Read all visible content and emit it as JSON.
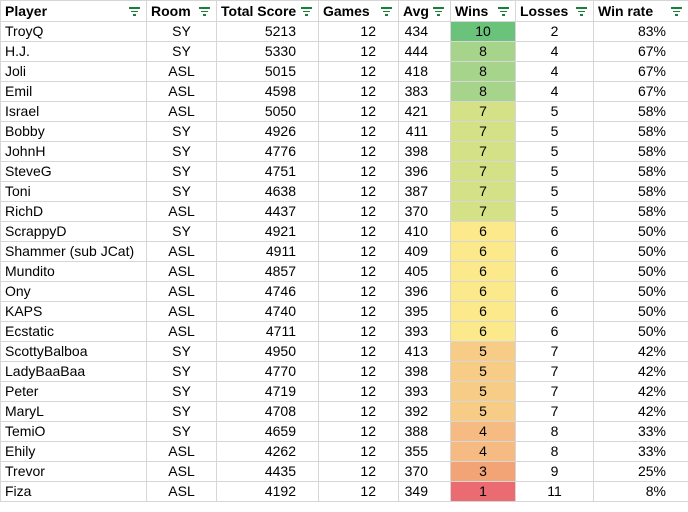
{
  "columns": [
    {
      "label": "Player"
    },
    {
      "label": "Room"
    },
    {
      "label": "Total Score"
    },
    {
      "label": "Games"
    },
    {
      "label": "Avg"
    },
    {
      "label": "Wins"
    },
    {
      "label": "Losses"
    },
    {
      "label": "Win rate"
    }
  ],
  "icons": {
    "filter": "filter-icon"
  },
  "win_colors": {
    "10": "#6ac27b",
    "8": "#a6d48a",
    "7": "#d5e187",
    "6": "#fce98c",
    "5": "#f7cc86",
    "4": "#f6bb83",
    "3": "#f2a477",
    "1": "#ea6b72"
  },
  "rows": [
    {
      "player": "TroyQ",
      "room": "SY",
      "total": "5213",
      "games": "12",
      "avg": "434",
      "wins": "10",
      "losses": "2",
      "rate": "83%"
    },
    {
      "player": "H.J.",
      "room": "SY",
      "total": "5330",
      "games": "12",
      "avg": "444",
      "wins": "8",
      "losses": "4",
      "rate": "67%"
    },
    {
      "player": "Joli",
      "room": "ASL",
      "total": "5015",
      "games": "12",
      "avg": "418",
      "wins": "8",
      "losses": "4",
      "rate": "67%"
    },
    {
      "player": "Emil",
      "room": "ASL",
      "total": "4598",
      "games": "12",
      "avg": "383",
      "wins": "8",
      "losses": "4",
      "rate": "67%"
    },
    {
      "player": "Israel",
      "room": "ASL",
      "total": "5050",
      "games": "12",
      "avg": "421",
      "wins": "7",
      "losses": "5",
      "rate": "58%"
    },
    {
      "player": "Bobby",
      "room": "SY",
      "total": "4926",
      "games": "12",
      "avg": "411",
      "wins": "7",
      "losses": "5",
      "rate": "58%"
    },
    {
      "player": "JohnH",
      "room": "SY",
      "total": "4776",
      "games": "12",
      "avg": "398",
      "wins": "7",
      "losses": "5",
      "rate": "58%"
    },
    {
      "player": "SteveG",
      "room": "SY",
      "total": "4751",
      "games": "12",
      "avg": "396",
      "wins": "7",
      "losses": "5",
      "rate": "58%"
    },
    {
      "player": "Toni",
      "room": "SY",
      "total": "4638",
      "games": "12",
      "avg": "387",
      "wins": "7",
      "losses": "5",
      "rate": "58%"
    },
    {
      "player": "RichD",
      "room": "ASL",
      "total": "4437",
      "games": "12",
      "avg": "370",
      "wins": "7",
      "losses": "5",
      "rate": "58%"
    },
    {
      "player": "ScrappyD",
      "room": "SY",
      "total": "4921",
      "games": "12",
      "avg": "410",
      "wins": "6",
      "losses": "6",
      "rate": "50%"
    },
    {
      "player": "Shammer (sub JCat)",
      "room": "ASL",
      "total": "4911",
      "games": "12",
      "avg": "409",
      "wins": "6",
      "losses": "6",
      "rate": "50%"
    },
    {
      "player": "Mundito",
      "room": "ASL",
      "total": "4857",
      "games": "12",
      "avg": "405",
      "wins": "6",
      "losses": "6",
      "rate": "50%"
    },
    {
      "player": "Ony",
      "room": "ASL",
      "total": "4746",
      "games": "12",
      "avg": "396",
      "wins": "6",
      "losses": "6",
      "rate": "50%"
    },
    {
      "player": "KAPS",
      "room": "ASL",
      "total": "4740",
      "games": "12",
      "avg": "395",
      "wins": "6",
      "losses": "6",
      "rate": "50%"
    },
    {
      "player": "Ecstatic",
      "room": "ASL",
      "total": "4711",
      "games": "12",
      "avg": "393",
      "wins": "6",
      "losses": "6",
      "rate": "50%"
    },
    {
      "player": "ScottyBalboa",
      "room": "SY",
      "total": "4950",
      "games": "12",
      "avg": "413",
      "wins": "5",
      "losses": "7",
      "rate": "42%"
    },
    {
      "player": "LadyBaaBaa",
      "room": "SY",
      "total": "4770",
      "games": "12",
      "avg": "398",
      "wins": "5",
      "losses": "7",
      "rate": "42%"
    },
    {
      "player": "Peter",
      "room": "SY",
      "total": "4719",
      "games": "12",
      "avg": "393",
      "wins": "5",
      "losses": "7",
      "rate": "42%"
    },
    {
      "player": "MaryL",
      "room": "SY",
      "total": "4708",
      "games": "12",
      "avg": "392",
      "wins": "5",
      "losses": "7",
      "rate": "42%"
    },
    {
      "player": "TemiO",
      "room": "SY",
      "total": "4659",
      "games": "12",
      "avg": "388",
      "wins": "4",
      "losses": "8",
      "rate": "33%"
    },
    {
      "player": "Ehily",
      "room": "ASL",
      "total": "4262",
      "games": "12",
      "avg": "355",
      "wins": "4",
      "losses": "8",
      "rate": "33%"
    },
    {
      "player": "Trevor",
      "room": "ASL",
      "total": "4435",
      "games": "12",
      "avg": "370",
      "wins": "3",
      "losses": "9",
      "rate": "25%"
    },
    {
      "player": "Fiza",
      "room": "ASL",
      "total": "4192",
      "games": "12",
      "avg": "349",
      "wins": "1",
      "losses": "11",
      "rate": "8%"
    }
  ]
}
